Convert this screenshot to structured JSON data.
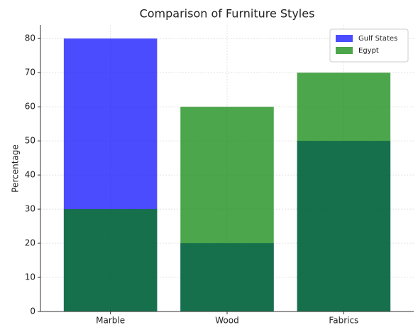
{
  "chart_data": {
    "type": "bar",
    "title": "Comparison of Furniture Styles",
    "y_label": "Percentage",
    "categories": [
      "Marble",
      "Wood",
      "Fabrics"
    ],
    "series": [
      {
        "name": "Gulf States",
        "color": "#0000ff",
        "values": [
          80,
          20,
          50
        ]
      },
      {
        "name": "Egypt",
        "color": "#008000",
        "values": [
          30,
          60,
          70
        ]
      }
    ],
    "ylim": [
      0,
      84
    ],
    "yticks": [
      0,
      10,
      20,
      30,
      40,
      50,
      60,
      70,
      80
    ],
    "grid": true,
    "legend": "upper right"
  }
}
